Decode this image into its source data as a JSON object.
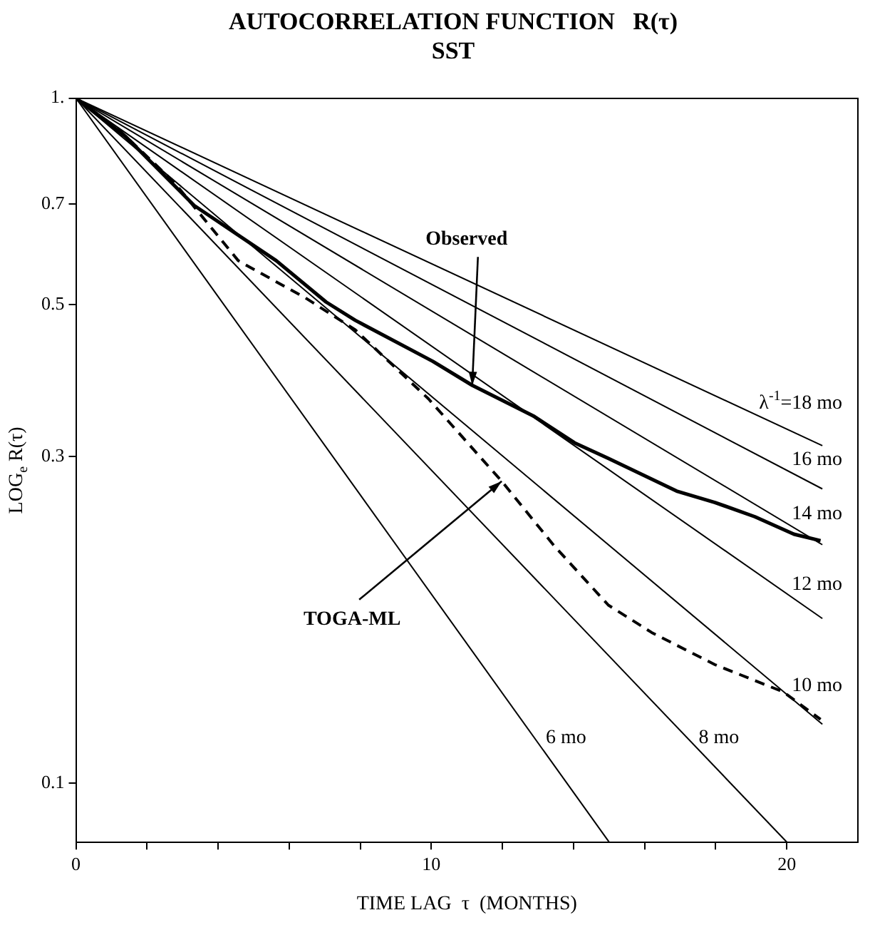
{
  "chart_data": {
    "type": "line",
    "title": "AUTOCORRELATION FUNCTION   R(τ)",
    "subtitle": "SST",
    "xlabel": "TIME LAG  τ  (MONTHS)",
    "ylabel": "LOG$_{e}$ R(τ)",
    "log": "y",
    "xlim": [
      0,
      22
    ],
    "ylim": [
      0.082,
      1
    ],
    "xticks": [
      0,
      {
        "value": 2,
        "label": null
      },
      {
        "value": 4,
        "label": null
      },
      {
        "value": 6,
        "label": null
      },
      {
        "value": 8,
        "label": null
      },
      10,
      {
        "value": 12,
        "label": null
      },
      {
        "value": 14,
        "label": null
      },
      {
        "value": 16,
        "label": null
      },
      {
        "value": 18,
        "label": null
      },
      20
    ],
    "yticks": [
      0.1,
      0.3,
      0.5,
      0.7,
      {
        "value": 1,
        "label": "1."
      }
    ],
    "grid": false,
    "legend": false,
    "marker": "none",
    "series": [
      {
        "name": "λ$^{-1}$=18 mo",
        "color": "#000000",
        "x": [
          0,
          21
        ],
        "values": [
          1,
          0.311
        ]
      },
      {
        "name": "16 mo",
        "color": "#000000",
        "x": [
          0,
          21
        ],
        "values": [
          1,
          0.269
        ]
      },
      {
        "name": "14 mo",
        "color": "#000000",
        "x": [
          0,
          21
        ],
        "values": [
          1,
          0.223
        ]
      },
      {
        "name": "12 mo",
        "color": "#000000",
        "x": [
          0,
          21
        ],
        "values": [
          1,
          0.174
        ]
      },
      {
        "name": "10 mo",
        "color": "#000000",
        "x": [
          0,
          21
        ],
        "values": [
          1,
          0.122
        ]
      },
      {
        "name": "8 mo",
        "color": "#000000",
        "x": [
          0,
          20
        ],
        "values": [
          1,
          0.0821
        ]
      },
      {
        "name": "6 mo",
        "color": "#000000",
        "x": [
          0,
          15
        ],
        "values": [
          1,
          0.0821
        ]
      },
      {
        "color": "#000000",
        "line_style": "solid",
        "x": [
          0,
          1.4,
          3.33,
          5.64,
          7.04,
          7.86,
          10.04,
          11.15,
          12.9,
          14.03,
          14.98,
          16.9,
          17.98,
          19.1,
          20.2,
          20.95
        ],
        "values": [
          1,
          0.879,
          0.697,
          0.579,
          0.504,
          0.474,
          0.413,
          0.381,
          0.343,
          0.314,
          0.298,
          0.267,
          0.257,
          0.245,
          0.231,
          0.226
        ]
      },
      {
        "color": "#000000",
        "line_style": "dashed",
        "x": [
          0,
          1.2,
          2.76,
          4.57,
          6.46,
          7.86,
          9.92,
          11.98,
          13.46,
          14.98,
          16.2,
          17.98,
          19.9,
          20.95
        ],
        "values": [
          1,
          0.9,
          0.754,
          0.579,
          0.511,
          0.459,
          0.364,
          0.276,
          0.222,
          0.182,
          0.166,
          0.149,
          0.136,
          0.124
        ]
      }
    ],
    "annotations": [
      {
        "text": "Observed",
        "x": 11.15,
        "y": 0.381
      },
      {
        "text": "TOGA-ML",
        "x": 11.98,
        "y": 0.276
      }
    ]
  }
}
